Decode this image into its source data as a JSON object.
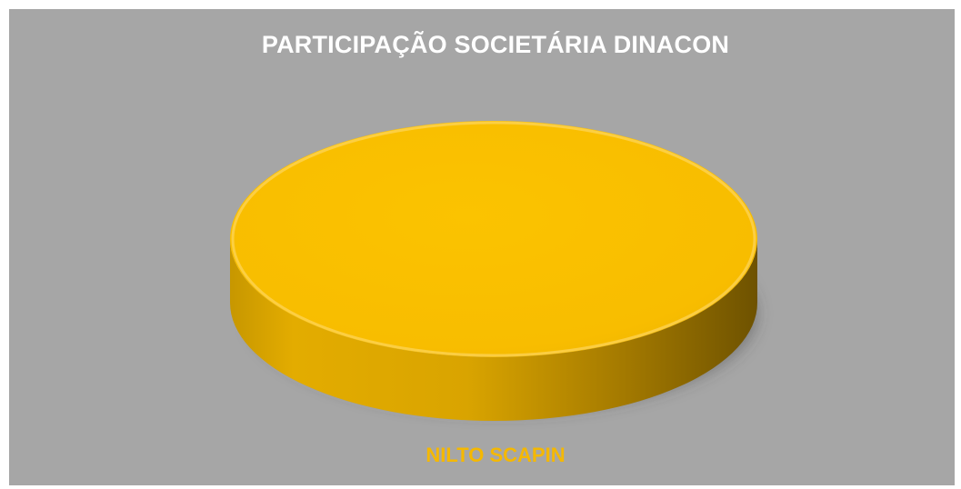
{
  "chart_data": {
    "type": "pie",
    "title": "PARTICIPAÇÃO SOCIETÁRIA DINACON",
    "categories": [
      "NILTO SCAPIN"
    ],
    "values": [
      100
    ],
    "colors": [
      "#f7bc00"
    ],
    "legend_position": "bottom",
    "style": "3d"
  }
}
